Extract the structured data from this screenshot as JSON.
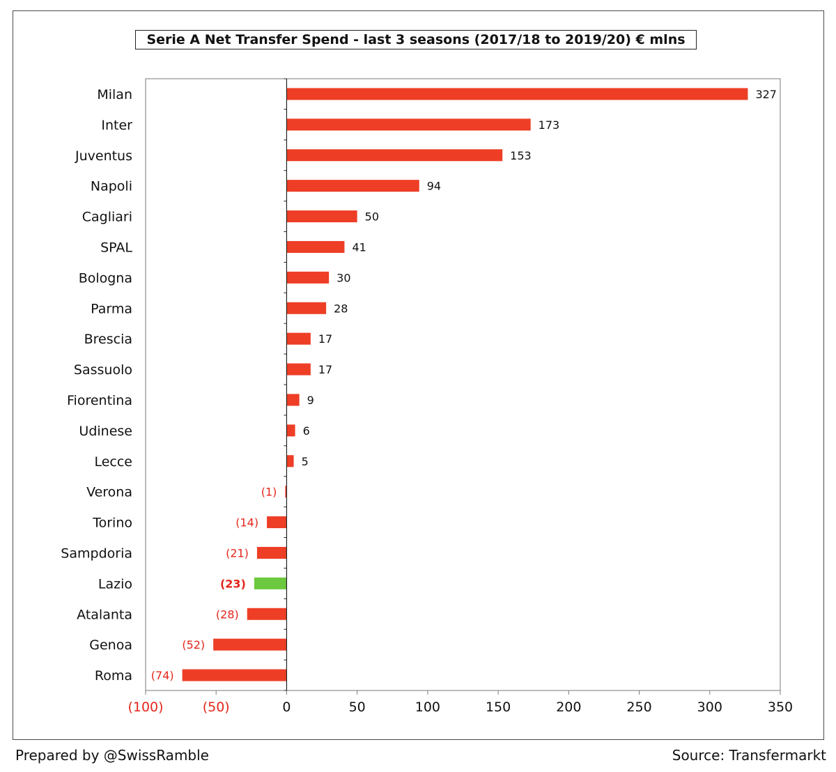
{
  "chart_data": {
    "type": "bar",
    "orientation": "horizontal",
    "title": "Serie A Net Transfer Spend - last 3 seasons (2017/18 to 2019/20) € mlns",
    "xlabel": "",
    "ylabel": "",
    "xlim": [
      -100,
      350
    ],
    "x_ticks": [
      -100,
      -50,
      0,
      50,
      100,
      150,
      200,
      250,
      300,
      350
    ],
    "x_tick_labels": [
      "(100)",
      "(50)",
      "0",
      "50",
      "100",
      "150",
      "200",
      "250",
      "300",
      "350"
    ],
    "grid": false,
    "categories": [
      "Milan",
      "Inter",
      "Juventus",
      "Napoli",
      "Cagliari",
      "SPAL",
      "Bologna",
      "Parma",
      "Brescia",
      "Sassuolo",
      "Fiorentina",
      "Udinese",
      "Lecce",
      "Verona",
      "Torino",
      "Sampdoria",
      "Lazio",
      "Atalanta",
      "Genoa",
      "Roma"
    ],
    "values": [
      327,
      173,
      153,
      94,
      50,
      41,
      30,
      28,
      17,
      17,
      9,
      6,
      5,
      -1,
      -14,
      -21,
      -23,
      -28,
      -52,
      -74
    ],
    "value_labels": [
      "327",
      "173",
      "153",
      "94",
      "50",
      "41",
      "30",
      "28",
      "17",
      "17",
      "9",
      "6",
      "5",
      "(1)",
      "(14)",
      "(21)",
      "(23)",
      "(28)",
      "(52)",
      "(74)"
    ],
    "highlight": "Lazio",
    "colors": {
      "bar": "#ee3e26",
      "highlight_bar": "#6cc93f",
      "negative_text": "#e3261b",
      "text": "#111111",
      "axis": "#7a7a7a"
    }
  },
  "footer": {
    "left": "Prepared by @SwissRamble",
    "right": "Source: Transfermarkt"
  }
}
